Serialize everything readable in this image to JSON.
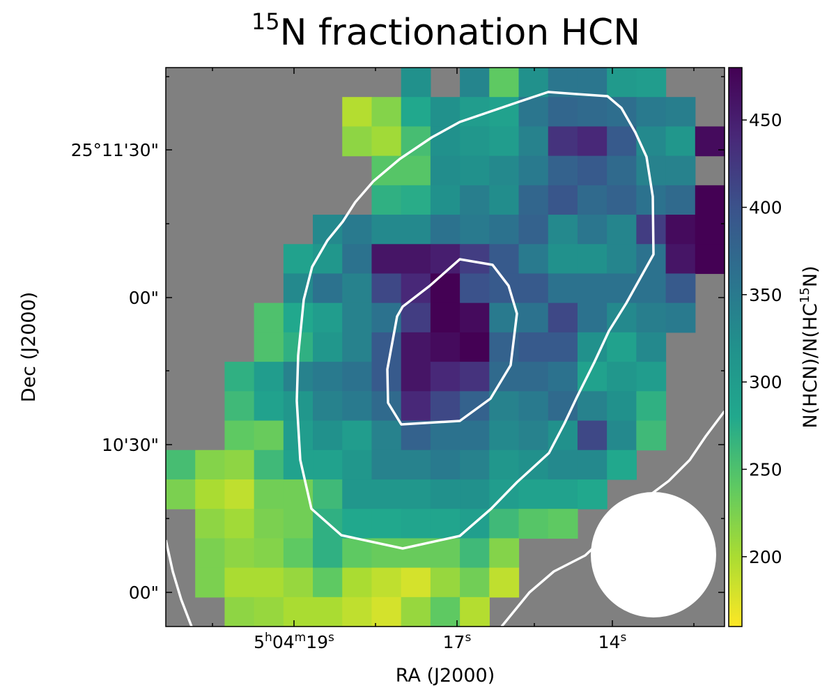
{
  "chart_data": {
    "type": "heatmap",
    "title": {
      "sup": "15",
      "main": "N fractionation HCN"
    },
    "xlabel": "RA (J2000)",
    "ylabel": "Dec (J2000)",
    "colorbar_label": {
      "pre": "N(HCN)/N(HC",
      "sup": "15",
      "post": "N)"
    },
    "x_ticks": [
      {
        "parts": [
          {
            "t": "5"
          },
          {
            "t": "h",
            "sup": true
          },
          {
            "t": "04"
          },
          {
            "t": "m",
            "sup": true
          },
          {
            "t": "19"
          },
          {
            "t": "s",
            "sup": true
          }
        ]
      },
      {
        "parts": [
          {
            "t": "17"
          },
          {
            "t": "s",
            "sup": true
          }
        ]
      },
      {
        "parts": [
          {
            "t": "14"
          },
          {
            "t": "s",
            "sup": true
          }
        ]
      }
    ],
    "y_ticks": [
      "25°11'30\"",
      "00\"",
      "10'30\"",
      "00\""
    ],
    "colorbar": {
      "colormap": "viridis_r",
      "vmin": 160,
      "vmax": 480,
      "ticks": [
        200,
        250,
        300,
        350,
        400,
        450
      ]
    },
    "nan_color": "#808080",
    "beam_color": "#ffffff",
    "contour_color": "#ffffff",
    "n_cols": 19,
    "n_rows": 19,
    "rows": [
      [
        null,
        null,
        null,
        null,
        null,
        null,
        null,
        null,
        320,
        null,
        335,
        240,
        320,
        355,
        355,
        305,
        300,
        null,
        null
      ],
      [
        null,
        null,
        null,
        null,
        null,
        null,
        195,
        220,
        280,
        320,
        300,
        290,
        355,
        375,
        370,
        365,
        350,
        345,
        null
      ],
      [
        null,
        null,
        null,
        null,
        null,
        null,
        215,
        205,
        255,
        320,
        310,
        300,
        340,
        430,
        440,
        390,
        330,
        310,
        470
      ],
      [
        null,
        null,
        null,
        null,
        null,
        null,
        null,
        245,
        245,
        325,
        320,
        330,
        350,
        380,
        390,
        370,
        340,
        340,
        null
      ],
      [
        null,
        null,
        null,
        null,
        null,
        null,
        null,
        270,
        275,
        320,
        345,
        325,
        375,
        395,
        370,
        380,
        360,
        370,
        480
      ],
      [
        null,
        null,
        null,
        null,
        null,
        330,
        350,
        330,
        330,
        360,
        350,
        360,
        380,
        330,
        355,
        335,
        420,
        470,
        480
      ],
      [
        null,
        null,
        null,
        null,
        290,
        310,
        360,
        460,
        460,
        450,
        420,
        390,
        350,
        320,
        320,
        335,
        360,
        460,
        480
      ],
      [
        null,
        null,
        null,
        null,
        330,
        360,
        340,
        410,
        440,
        480,
        400,
        390,
        390,
        360,
        360,
        360,
        360,
        390,
        null
      ],
      [
        null,
        null,
        null,
        250,
        280,
        300,
        340,
        360,
        420,
        480,
        470,
        350,
        360,
        410,
        360,
        330,
        345,
        350,
        null
      ],
      [
        null,
        null,
        null,
        250,
        270,
        310,
        340,
        390,
        460,
        470,
        480,
        380,
        390,
        390,
        320,
        290,
        330,
        null,
        null
      ],
      [
        null,
        null,
        270,
        300,
        340,
        350,
        360,
        390,
        460,
        440,
        430,
        370,
        370,
        360,
        290,
        310,
        300,
        null,
        null
      ],
      [
        null,
        null,
        260,
        290,
        310,
        340,
        350,
        370,
        440,
        410,
        380,
        340,
        350,
        370,
        340,
        320,
        270,
        null,
        null
      ],
      [
        null,
        null,
        240,
        235,
        300,
        320,
        300,
        340,
        380,
        360,
        360,
        330,
        340,
        320,
        410,
        330,
        260,
        null,
        null
      ],
      [
        255,
        220,
        215,
        260,
        290,
        290,
        310,
        340,
        340,
        350,
        340,
        310,
        320,
        330,
        330,
        280,
        null,
        null,
        null
      ],
      [
        225,
        200,
        190,
        230,
        230,
        260,
        310,
        310,
        310,
        320,
        320,
        300,
        290,
        290,
        280,
        null,
        null,
        null,
        null
      ],
      [
        null,
        215,
        205,
        225,
        230,
        270,
        280,
        280,
        285,
        285,
        295,
        260,
        245,
        240,
        null,
        null,
        null,
        null,
        null
      ],
      [
        null,
        225,
        215,
        220,
        240,
        270,
        240,
        235,
        235,
        235,
        260,
        220,
        null,
        null,
        null,
        null,
        null,
        null,
        null
      ],
      [
        null,
        225,
        200,
        200,
        210,
        240,
        200,
        190,
        180,
        210,
        230,
        190,
        null,
        null,
        null,
        null,
        null,
        null,
        null
      ],
      [
        null,
        null,
        215,
        210,
        200,
        200,
        190,
        180,
        210,
        240,
        195,
        null,
        null,
        null,
        null,
        null,
        null,
        null,
        null
      ]
    ]
  }
}
